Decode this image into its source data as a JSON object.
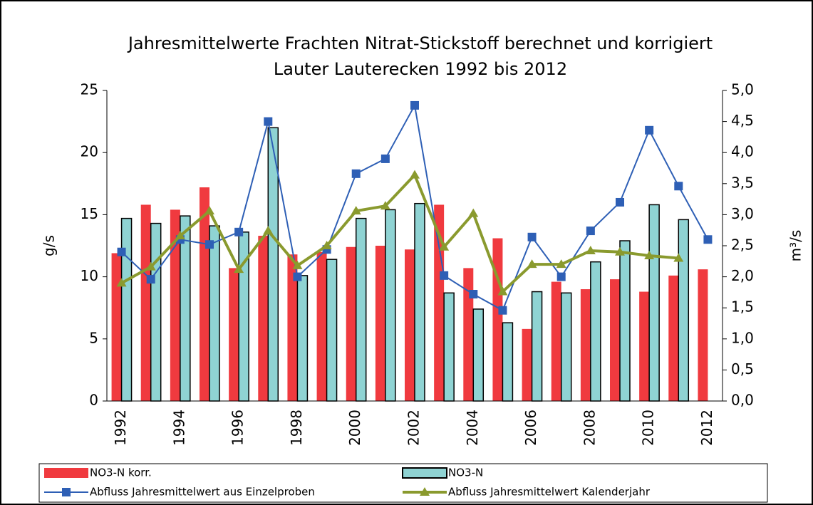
{
  "chart_data": {
    "type": "bar_line",
    "title": "Jahresmittelwerte Frachten Nitrat-Stickstoff berechnet und korrigiert",
    "subtitle": "Lauter Lauterecken 1992 bis 2012",
    "ylabel": "g/s",
    "y2label": "m³/s",
    "categories": [
      "1992",
      null,
      "1994",
      null,
      "1996",
      null,
      "1998",
      null,
      "2000",
      null,
      "2002",
      null,
      "2004",
      null,
      "2006",
      null,
      "2008",
      null,
      "2010",
      null,
      "2012"
    ],
    "ylim": [
      0,
      25
    ],
    "yticks": [
      0,
      5,
      10,
      15,
      20,
      25
    ],
    "y2lim": [
      0,
      5
    ],
    "y2ticks": [
      {
        "value": 0,
        "label": "0,0"
      },
      {
        "value": 0.5,
        "label": "0,5"
      },
      {
        "value": 1,
        "label": "1,0"
      },
      {
        "value": 1.5,
        "label": "1,5"
      },
      {
        "value": 2,
        "label": "2,0"
      },
      {
        "value": 2.5,
        "label": "2,5"
      },
      {
        "value": 3,
        "label": "3,0"
      },
      {
        "value": 3.5,
        "label": "3,5"
      },
      {
        "value": 4,
        "label": "4,0"
      },
      {
        "value": 4.5,
        "label": "4,5"
      },
      {
        "value": 5,
        "label": "5,0"
      }
    ],
    "series": [
      {
        "name": "NO3-N korr.",
        "type": "bar",
        "color": "#f03a3f",
        "values": [
          11.9,
          15.8,
          15.4,
          17.2,
          10.7,
          13.3,
          11.8,
          12.0,
          12.4,
          12.5,
          12.2,
          15.8,
          10.7,
          13.1,
          5.8,
          9.6,
          9.0,
          9.8,
          8.8,
          10.1,
          10.6
        ]
      },
      {
        "name": "NO3-N",
        "type": "bar",
        "color": "#8fd3d3",
        "values": [
          14.7,
          14.3,
          14.9,
          14.1,
          13.6,
          22.0,
          10.1,
          11.4,
          14.7,
          15.4,
          15.9,
          8.7,
          7.4,
          6.3,
          8.8,
          8.7,
          11.2,
          12.9,
          15.8,
          14.6,
          null
        ]
      },
      {
        "name": "Abfluss Jahresmittelwert aus Einzelproben",
        "type": "line",
        "marker": "square",
        "axis": "y2",
        "color": "#2e5fb5",
        "values": [
          2.4,
          1.96,
          2.6,
          2.52,
          2.72,
          4.5,
          2.0,
          2.44,
          3.66,
          3.9,
          4.76,
          2.02,
          1.72,
          1.46,
          2.64,
          2.0,
          2.74,
          3.2,
          4.36,
          3.46,
          2.6
        ]
      },
      {
        "name": "Abfluss Jahresmittelwert Kalenderjahr",
        "type": "line",
        "marker": "triangle",
        "axis": "y2",
        "color": "#8a9a2e",
        "values": [
          1.9,
          2.16,
          2.66,
          3.06,
          2.12,
          2.74,
          2.18,
          2.5,
          3.06,
          3.14,
          3.64,
          2.48,
          3.02,
          1.76,
          2.2,
          2.2,
          2.42,
          2.4,
          2.34,
          2.3,
          null
        ]
      }
    ]
  }
}
